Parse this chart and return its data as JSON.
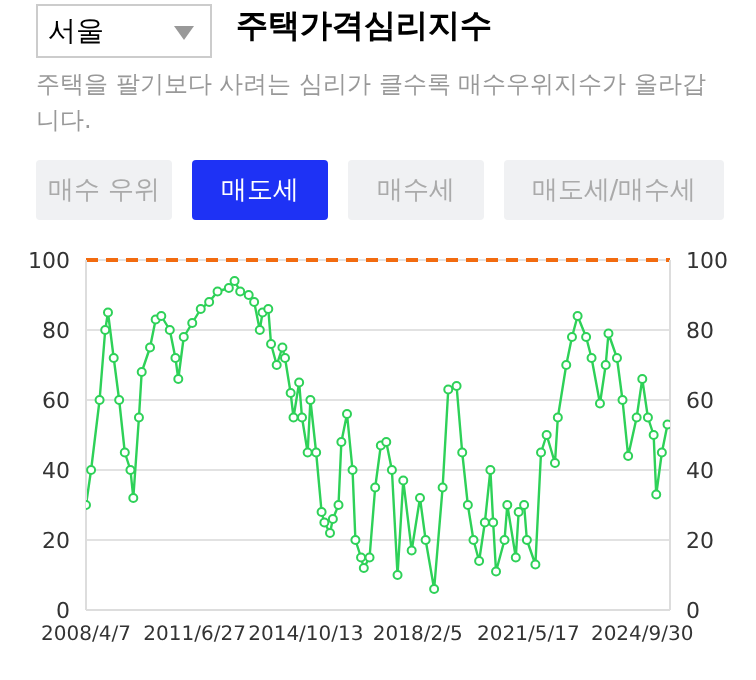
{
  "chart_data": {
    "type": "line",
    "title": "주택가격심리지수",
    "subtitle": "주택을 팔기보다 사려는 심리가 클수록 매수우위지수가 올라갑니다.",
    "annotations": [
      "서울",
      "매수 우위",
      "매도세",
      "매수세",
      "매도세/매수세"
    ],
    "x": [
      "2008-04-07",
      "2008-06",
      "2008-09",
      "2008-11",
      "2008-12",
      "2009-02",
      "2009-04",
      "2009-06",
      "2009-08",
      "2009-09",
      "2009-11",
      "2009-12",
      "2010-03",
      "2010-05",
      "2010-07",
      "2010-10",
      "2010-12",
      "2011-01",
      "2011-03",
      "2011-06",
      "2011-09",
      "2011-12",
      "2012-03",
      "2012-07",
      "2012-09",
      "2012-11",
      "2013-02",
      "2013-04",
      "2013-06",
      "2013-07",
      "2013-09",
      "2013-10",
      "2013-12",
      "2014-02",
      "2014-03",
      "2014-05",
      "2014-06",
      "2014-08",
      "2014-09",
      "2014-11",
      "2014-12",
      "2015-02",
      "2015-04",
      "2015-05",
      "2015-07",
      "2015-08",
      "2015-10",
      "2015-11",
      "2016-01",
      "2016-03",
      "2016-04",
      "2016-06",
      "2016-07",
      "2016-09",
      "2016-11",
      "2017-01",
      "2017-03",
      "2017-05",
      "2017-07",
      "2017-09",
      "2017-12",
      "2018-03",
      "2018-05",
      "2018-08",
      "2018-11",
      "2019-01",
      "2019-04",
      "2019-06",
      "2019-08",
      "2019-10",
      "2019-12",
      "2020-02",
      "2020-04",
      "2020-05",
      "2020-06",
      "2020-09",
      "2020-10",
      "2021-01",
      "2021-02",
      "2021-04",
      "2021-05",
      "2021-08",
      "2021-10",
      "2021-12",
      "2022-03",
      "2022-04",
      "2022-07",
      "2022-09",
      "2022-11",
      "2023-02",
      "2023-04",
      "2023-07",
      "2023-09",
      "2023-10",
      "2024-01",
      "2024-03",
      "2024-05",
      "2024-08",
      "2024-10",
      "2024-12",
      "2025-02",
      "2025-03",
      "2025-05",
      "2025-07"
    ],
    "series": [
      {
        "color": "#2ed158",
        "values": [
          30,
          40,
          60,
          80,
          85,
          72,
          60,
          45,
          40,
          32,
          55,
          68,
          75,
          83,
          84,
          80,
          72,
          66,
          78,
          82,
          86,
          88,
          91,
          92,
          94,
          91,
          90,
          88,
          80,
          85,
          86,
          76,
          70,
          75,
          72,
          62,
          55,
          65,
          55,
          45,
          60,
          45,
          28,
          25,
          22,
          26,
          30,
          48,
          56,
          40,
          20,
          15,
          12,
          15,
          35,
          47,
          48,
          40,
          10,
          37,
          17,
          32,
          20,
          6,
          35,
          63,
          64,
          45,
          30,
          20,
          14,
          25,
          40,
          25,
          11,
          20,
          30,
          15,
          28,
          30,
          20,
          13,
          45,
          50,
          42,
          55,
          70,
          78,
          84,
          78,
          72,
          59,
          70,
          79,
          72,
          60,
          44,
          55,
          66,
          55,
          50,
          33,
          45,
          53
        ]
      }
    ],
    "xlim": [
      "2008-04-07",
      "2025-07-28"
    ],
    "xticks": [
      {
        "value": "2008-04-07",
        "label": "2008/4/7"
      },
      {
        "value": "2011-06-27",
        "label": "2011/6/27"
      },
      {
        "value": "2014-10-13",
        "label": "2014/10/13"
      },
      {
        "value": "2018-02-05",
        "label": "2018/2/5"
      },
      {
        "value": "2021-05-17",
        "label": "2021/5/17"
      },
      {
        "value": "2024-09-30",
        "label": "2024/9/30"
      }
    ],
    "ylim": [
      0,
      100
    ],
    "yticks": [
      0,
      20,
      40,
      60,
      80,
      100
    ],
    "y2lim": [
      0,
      100
    ],
    "y2ticks": [
      0,
      20,
      40,
      60,
      80,
      100
    ],
    "ref_lines": [
      {
        "axis": "y",
        "value": 100,
        "color": "#f26b0f",
        "line_style": "dashed"
      }
    ],
    "grid": "y",
    "marker": "circle",
    "line_style": "solid"
  }
}
